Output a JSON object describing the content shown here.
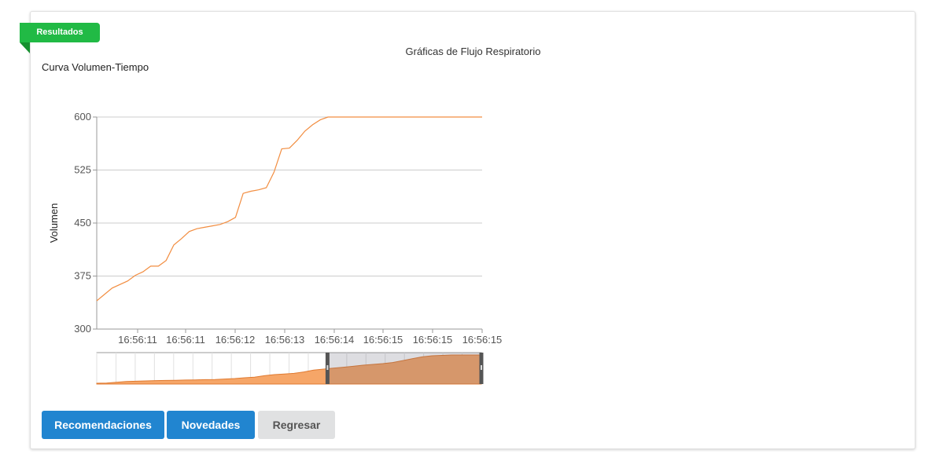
{
  "ribbon": {
    "label": "Resultados"
  },
  "header": {
    "title": "Gráficas de Flujo Respiratorio",
    "subtitle": "Curva Volumen-Tiempo"
  },
  "colors": {
    "accent_green": "#21ba45",
    "primary_blue": "#2185d0",
    "series_orange": "#f28d40",
    "navigator_fill": "#f6a668"
  },
  "buttons": {
    "recommendations": "Recomendaciones",
    "news": "Novedades",
    "back": "Regresar"
  },
  "chart_data": {
    "type": "line",
    "ylabel": "Volumen",
    "ylim": [
      300,
      600
    ],
    "yticks": [
      "300",
      "375",
      "450",
      "525",
      "600"
    ],
    "xticks": [
      "16:56:11",
      "16:56:11",
      "16:56:12",
      "16:56:13",
      "16:56:14",
      "16:56:15",
      "16:56:15",
      "16:56:15"
    ],
    "grid": true,
    "series": [
      {
        "x": [
          0,
          0.04,
          0.08,
          0.1,
          0.12,
          0.14,
          0.16,
          0.18,
          0.2,
          0.22,
          0.24,
          0.26,
          0.28,
          0.3,
          0.32,
          0.34,
          0.36,
          0.38,
          0.4,
          0.42,
          0.44,
          0.46,
          0.48,
          0.5,
          0.52,
          0.54,
          0.56,
          0.58,
          0.6,
          0.62,
          0.64,
          0.66,
          0.68,
          0.7,
          0.72,
          0.74,
          0.76,
          0.78,
          0.8,
          0.82,
          0.84,
          0.86,
          0.88,
          0.9,
          0.92,
          0.94,
          0.96,
          0.98,
          1.0
        ],
        "values": [
          340,
          358,
          368,
          376,
          381,
          389,
          389,
          397,
          419,
          428,
          438,
          442,
          444,
          446,
          448,
          452,
          458,
          492,
          495,
          497,
          500,
          522,
          555,
          556,
          567,
          580,
          589,
          596,
          600,
          600,
          600,
          600,
          600,
          600,
          600,
          600,
          600,
          600,
          600,
          600,
          600,
          600,
          600,
          600,
          600,
          600,
          600,
          600,
          600
        ]
      }
    ],
    "navigator": {
      "full_values": [
        300,
        302,
        310,
        318,
        322,
        325,
        328,
        330,
        332,
        334,
        336,
        338,
        340,
        345,
        350,
        358,
        365,
        380,
        392,
        398,
        405,
        420,
        440,
        450,
        460,
        470,
        480,
        492,
        500,
        508,
        520,
        540,
        560,
        580,
        592,
        596,
        600,
        600,
        600,
        600
      ],
      "selected_from": 0.6,
      "selected_to": 1.0
    }
  }
}
